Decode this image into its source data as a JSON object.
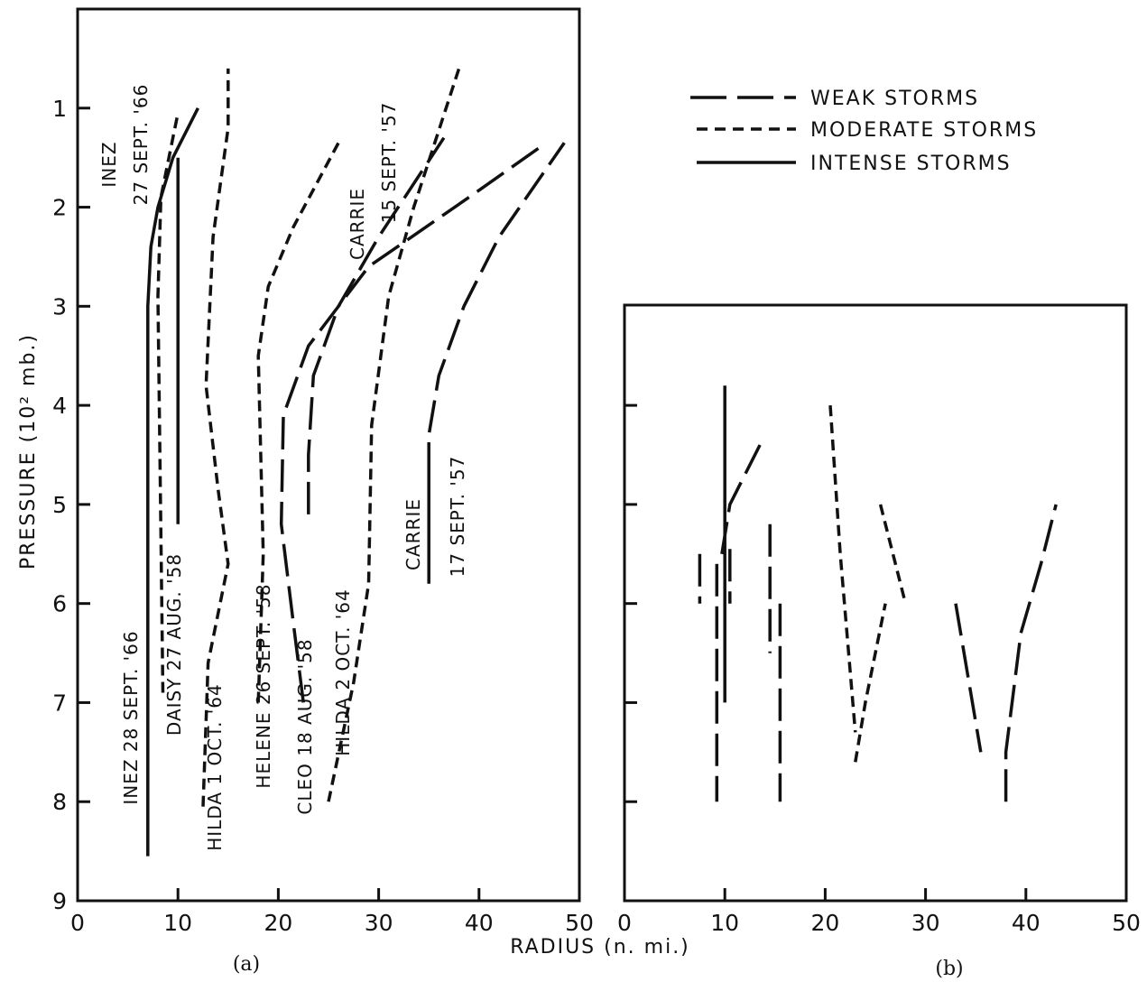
{
  "chart_data": [
    {
      "panel": "(a)",
      "type": "line",
      "xlim": [
        0,
        50
      ],
      "ylim": [
        9,
        0
      ],
      "xticks": [
        "0",
        "10",
        "20",
        "30",
        "40",
        "50"
      ],
      "yticks": [
        "1",
        "2",
        "3",
        "4",
        "5",
        "6",
        "7",
        "8",
        "9"
      ],
      "ylabel": "PRESSURE (10² mb.)",
      "series": [
        {
          "name": "INEZ 28 SEPT. '66",
          "style": "intense",
          "x": [
            7.0,
            7.0,
            7.3,
            8.0,
            9.5,
            12.0
          ],
          "y": [
            8.55,
            3.0,
            2.4,
            2.0,
            1.5,
            1.0
          ]
        },
        {
          "name": "INEZ 27 SEPT. '66",
          "style": "moderate",
          "x": [
            8.5,
            8.0,
            8.3,
            9.5,
            10.0
          ],
          "y": [
            6.9,
            2.9,
            1.9,
            1.3,
            1.05
          ]
        },
        {
          "name": "DAISY 27 AUG. '58",
          "style": "intense",
          "x": [
            10.0,
            10.0
          ],
          "y": [
            5.2,
            1.5
          ]
        },
        {
          "name": "HILDA 1 OCT. '64",
          "style": "moderate",
          "x": [
            12.5,
            13.0,
            15.0,
            14.0,
            12.8,
            13.5,
            15.0,
            15.0
          ],
          "y": [
            8.05,
            6.6,
            5.6,
            4.85,
            3.8,
            2.3,
            1.2,
            0.6
          ]
        },
        {
          "name": "HELENE 26 SEPT. '58",
          "style": "moderate",
          "x": [
            18.0,
            18.5,
            18.0,
            19.0,
            21.5,
            26.0
          ],
          "y": [
            7.0,
            5.5,
            3.5,
            2.8,
            2.2,
            1.35
          ]
        },
        {
          "name": "CLEO 18 AUG. '58",
          "style": "weak",
          "x": [
            22.5,
            21.5,
            20.3,
            20.5,
            23.0,
            29.0,
            39.0,
            46.0
          ],
          "y": [
            7.0,
            6.2,
            5.2,
            4.1,
            3.4,
            2.6,
            1.9,
            1.4
          ]
        },
        {
          "name": "HILDA 2 OCT. '64",
          "style": "moderate",
          "x": [
            25.0,
            27.5,
            29.0,
            29.3,
            31.0,
            33.5,
            38.0
          ],
          "y": [
            8.0,
            6.8,
            5.8,
            4.2,
            2.9,
            2.0,
            0.6
          ]
        },
        {
          "name": "CARRIE 15 SEPT. '57",
          "style": "weak",
          "x": [
            23.0,
            23.0,
            23.5,
            26.0,
            30.0,
            36.5
          ],
          "y": [
            5.1,
            4.5,
            3.7,
            3.0,
            2.3,
            1.3
          ]
        },
        {
          "name": "CARRIE 17 SEPT. '57",
          "style": "weak",
          "x": [
            35.0,
            35.0,
            36.0,
            38.5,
            42.0,
            48.5
          ],
          "y": [
            4.7,
            4.3,
            3.7,
            3.0,
            2.3,
            1.35
          ]
        },
        {
          "name": "CARRIE 17 SEPT. '57",
          "style": "intense",
          "x": [
            35.0,
            35.0
          ],
          "y": [
            5.8,
            4.7
          ]
        }
      ]
    },
    {
      "panel": "(b)",
      "type": "line",
      "xlim": [
        0,
        50
      ],
      "xticks": [
        "0",
        "10",
        "20",
        "30",
        "40",
        "50"
      ],
      "series": [
        {
          "style": "weak",
          "x": [
            7.5,
            7.5
          ],
          "y": [
            5.5,
            6.0
          ]
        },
        {
          "style": "weak",
          "x": [
            9.2,
            9.2
          ],
          "y": [
            5.6,
            8.0
          ]
        },
        {
          "style": "weak",
          "x": [
            10.5,
            10.5
          ],
          "y": [
            5.45,
            6.0
          ]
        },
        {
          "style": "intense",
          "x": [
            10.0,
            10.0
          ],
          "y": [
            3.8,
            7.0
          ]
        },
        {
          "style": "weak",
          "x": [
            9.7,
            10.5,
            12.0,
            13.5
          ],
          "y": [
            5.5,
            5.0,
            4.7,
            4.4
          ]
        },
        {
          "style": "weak",
          "x": [
            14.5,
            14.5
          ],
          "y": [
            5.2,
            6.5
          ]
        },
        {
          "style": "weak",
          "x": [
            15.5,
            15.5
          ],
          "y": [
            6.0,
            8.0
          ]
        },
        {
          "style": "moderate",
          "x": [
            20.5,
            21.5,
            23.0
          ],
          "y": [
            4.0,
            5.5,
            7.3
          ]
        },
        {
          "style": "moderate",
          "x": [
            23.0,
            24.0,
            26.0
          ],
          "y": [
            7.6,
            7.0,
            6.0
          ]
        },
        {
          "style": "moderate",
          "x": [
            25.5,
            28.0
          ],
          "y": [
            5.0,
            6.0
          ]
        },
        {
          "style": "weak",
          "x": [
            33.0,
            35.5
          ],
          "y": [
            6.0,
            7.5
          ]
        },
        {
          "style": "weak",
          "x": [
            38.0,
            38.0,
            39.5,
            41.5,
            43.0
          ],
          "y": [
            8.0,
            7.5,
            6.3,
            5.6,
            5.0
          ]
        }
      ]
    }
  ],
  "legend": [
    {
      "label": "WEAK STORMS",
      "style": "weak"
    },
    {
      "label": "MODERATE STORMS",
      "style": "moderate"
    },
    {
      "label": "INTENSE STORMS",
      "style": "intense"
    }
  ],
  "storm_labels": {
    "inez_27": [
      "INEZ",
      "27 SEPT. '66"
    ],
    "inez_28": "INEZ 28 SEPT. '66",
    "daisy": "DAISY 27 AUG. '58",
    "hilda_1": "HILDA 1 OCT. '64",
    "helene": "HELENE 26 SEPT. '58",
    "cleo": "CLEO 18 AUG. '58",
    "hilda_2": "HILDA 2 OCT. '64",
    "carrie_15": [
      "CARRIE",
      "15 SEPT. '57"
    ],
    "carrie_17": [
      "CARRIE",
      "17 SEPT. '57"
    ]
  },
  "xlabel": "RADIUS (n. mi.)",
  "panel_labels": [
    "(a)",
    "(b)"
  ],
  "colors": {
    "ink": "#111111",
    "background": "#ffffff"
  }
}
